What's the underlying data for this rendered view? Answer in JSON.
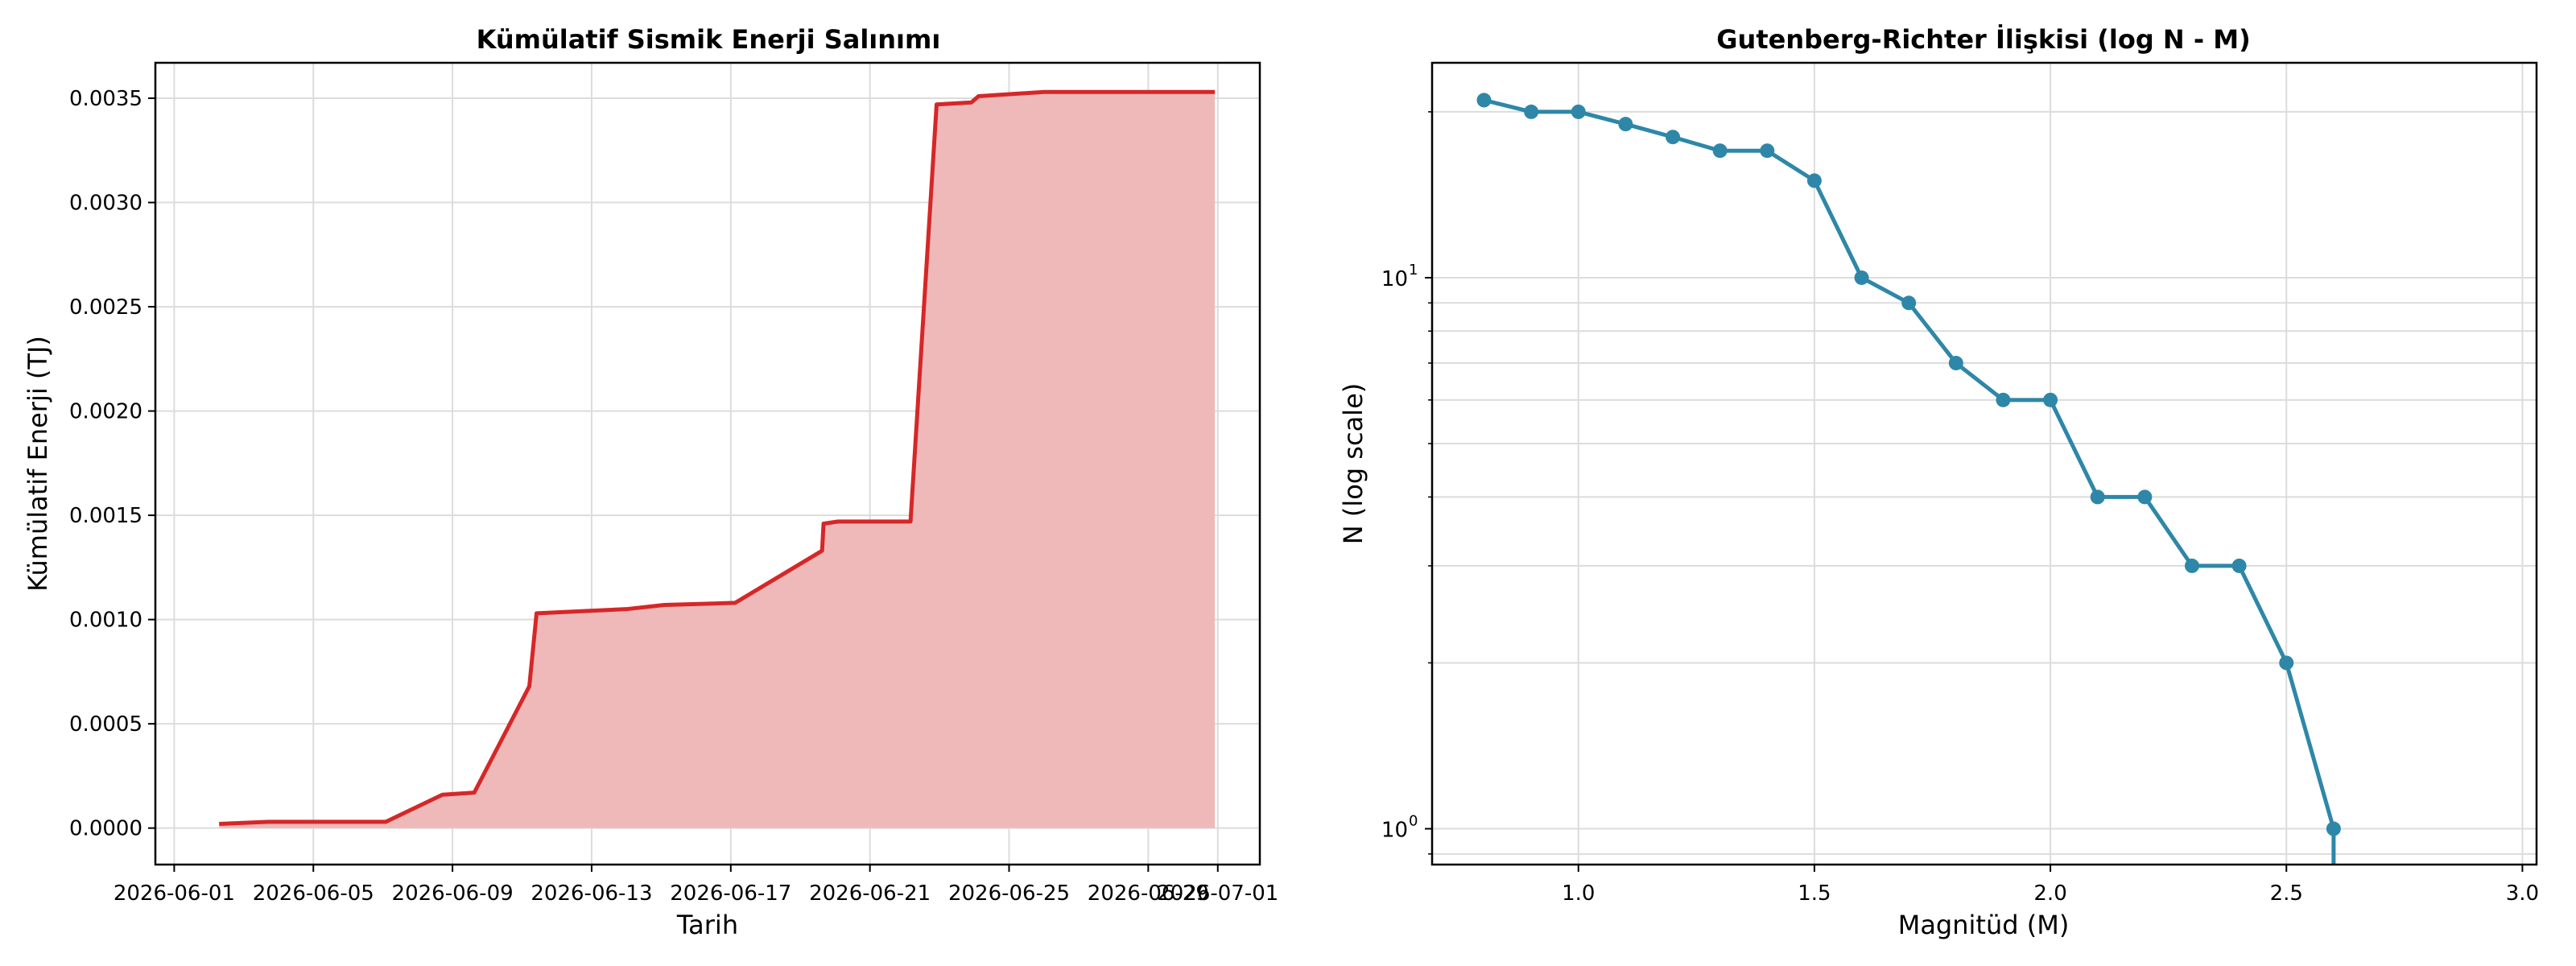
{
  "charts": [
    {
      "type": "area",
      "title": "Kümülatif Sismik Enerji Salınımı",
      "xlabel": "Tarih",
      "ylabel": "Kümülatif Enerji (TJ)",
      "color": "#d62728",
      "fill_color": "#f0b9b9",
      "xlim": [
        "2026-05-31T11:00",
        "2026-07-02T05:00"
      ],
      "ylim": [
        -0.000175,
        0.00367
      ],
      "x_ticks": [
        {
          "value": "2026-06-01",
          "label": "2026-06-01"
        },
        {
          "value": "2026-06-05",
          "label": "2026-06-05"
        },
        {
          "value": "2026-06-09",
          "label": "2026-06-09"
        },
        {
          "value": "2026-06-13",
          "label": "2026-06-13"
        },
        {
          "value": "2026-06-17",
          "label": "2026-06-17"
        },
        {
          "value": "2026-06-21",
          "label": "2026-06-21"
        },
        {
          "value": "2026-06-25",
          "label": "2026-06-25"
        },
        {
          "value": "2026-06-29",
          "label": "2026-06-29"
        },
        {
          "value": "2026-07-01",
          "label": "2026-07-01"
        }
      ],
      "y_ticks": [
        {
          "value": 0.0,
          "label": "0.0000"
        },
        {
          "value": 0.0005,
          "label": "0.0005"
        },
        {
          "value": 0.001,
          "label": "0.0010"
        },
        {
          "value": 0.0015,
          "label": "0.0015"
        },
        {
          "value": 0.002,
          "label": "0.0020"
        },
        {
          "value": 0.0025,
          "label": "0.0025"
        },
        {
          "value": 0.003,
          "label": "0.0030"
        },
        {
          "value": 0.0035,
          "label": "0.0035"
        }
      ],
      "grid": true,
      "series": [
        {
          "points": [
            {
              "x": "2026-06-02T07:00",
              "y": 2e-05
            },
            {
              "x": "2026-06-03T17:00",
              "y": 3e-05
            },
            {
              "x": "2026-06-07T02:00",
              "y": 3e-05
            },
            {
              "x": "2026-06-08T17:00",
              "y": 0.00016
            },
            {
              "x": "2026-06-09T15:00",
              "y": 0.00017
            },
            {
              "x": "2026-06-11T05:00",
              "y": 0.00068
            },
            {
              "x": "2026-06-11T10:00",
              "y": 0.00103
            },
            {
              "x": "2026-06-14T00:00",
              "y": 0.00105
            },
            {
              "x": "2026-06-15T02:00",
              "y": 0.00107
            },
            {
              "x": "2026-06-17T03:00",
              "y": 0.00108
            },
            {
              "x": "2026-06-19T15:00",
              "y": 0.00133
            },
            {
              "x": "2026-06-19T16:00",
              "y": 0.00146
            },
            {
              "x": "2026-06-20T02:00",
              "y": 0.00147
            },
            {
              "x": "2026-06-22T04:00",
              "y": 0.00147
            },
            {
              "x": "2026-06-22T22:00",
              "y": 0.00347
            },
            {
              "x": "2026-06-23T22:00",
              "y": 0.00348
            },
            {
              "x": "2026-06-24T03:00",
              "y": 0.00351
            },
            {
              "x": "2026-06-26T00:00",
              "y": 0.00353
            },
            {
              "x": "2026-06-30T22:00",
              "y": 0.00353
            }
          ]
        }
      ]
    },
    {
      "type": "line",
      "title": "Gutenberg-Richter İlişkisi (log N - M)",
      "xlabel": "Magnitüd (M)",
      "ylabel": "N (log scale)",
      "color": "#2e87a8",
      "log_y": true,
      "xlim": [
        0.69,
        3.03
      ],
      "ylim_log10": [
        -0.065,
        1.39
      ],
      "x_ticks": [
        {
          "value": 1.0,
          "label": "1.0"
        },
        {
          "value": 1.5,
          "label": "1.5"
        },
        {
          "value": 2.0,
          "label": "2.0"
        },
        {
          "value": 2.5,
          "label": "2.5"
        },
        {
          "value": 3.0,
          "label": "3.0"
        }
      ],
      "y_ticks": [
        {
          "value": 1,
          "label": "10",
          "exp": "0"
        },
        {
          "value": 10,
          "label": "10",
          "exp": "1"
        }
      ],
      "grid": true,
      "series": [
        {
          "points": [
            {
              "x": 0.8,
              "y": 21
            },
            {
              "x": 0.9,
              "y": 20
            },
            {
              "x": 1.0,
              "y": 20
            },
            {
              "x": 1.1,
              "y": 19
            },
            {
              "x": 1.2,
              "y": 18
            },
            {
              "x": 1.3,
              "y": 17
            },
            {
              "x": 1.4,
              "y": 17
            },
            {
              "x": 1.5,
              "y": 15
            },
            {
              "x": 1.6,
              "y": 10
            },
            {
              "x": 1.7,
              "y": 9
            },
            {
              "x": 1.8,
              "y": 7
            },
            {
              "x": 1.9,
              "y": 6
            },
            {
              "x": 2.0,
              "y": 6
            },
            {
              "x": 2.1,
              "y": 4
            },
            {
              "x": 2.2,
              "y": 4
            },
            {
              "x": 2.3,
              "y": 3
            },
            {
              "x": 2.4,
              "y": 3
            },
            {
              "x": 2.5,
              "y": 2
            },
            {
              "x": 2.6,
              "y": 1
            },
            {
              "x": 2.6,
              "y": 0.85
            }
          ]
        }
      ]
    }
  ],
  "chart_data": [
    {
      "type": "area",
      "title": "Kümülatif Sismik Enerji Salınımı",
      "xlabel": "Tarih",
      "ylabel": "Kümülatif Enerji (TJ)",
      "x": [
        "2026-06-02",
        "2026-06-03",
        "2026-06-07",
        "2026-06-08",
        "2026-06-09",
        "2026-06-11",
        "2026-06-11",
        "2026-06-14",
        "2026-06-15",
        "2026-06-17",
        "2026-06-19",
        "2026-06-19",
        "2026-06-20",
        "2026-06-22",
        "2026-06-22",
        "2026-06-23",
        "2026-06-24",
        "2026-06-26",
        "2026-06-30"
      ],
      "y": [
        2e-05,
        3e-05,
        3e-05,
        0.00016,
        0.00017,
        0.00068,
        0.00103,
        0.00105,
        0.00107,
        0.00108,
        0.00133,
        0.00146,
        0.00147,
        0.00147,
        0.00347,
        0.00348,
        0.00351,
        0.00353,
        0.00353
      ],
      "ylim": [
        0,
        0.0035
      ],
      "grid": true
    },
    {
      "type": "line",
      "title": "Gutenberg-Richter İlişkisi (log N - M)",
      "xlabel": "Magnitüd (M)",
      "ylabel": "N (log scale)",
      "x": [
        0.8,
        0.9,
        1.0,
        1.1,
        1.2,
        1.3,
        1.4,
        1.5,
        1.6,
        1.7,
        1.8,
        1.9,
        2.0,
        2.1,
        2.2,
        2.3,
        2.4,
        2.5,
        2.6
      ],
      "y": [
        21,
        20,
        20,
        19,
        18,
        17,
        17,
        15,
        10,
        9,
        7,
        6,
        6,
        4,
        4,
        3,
        3,
        2,
        1
      ],
      "y_scale": "log",
      "grid": true
    }
  ]
}
